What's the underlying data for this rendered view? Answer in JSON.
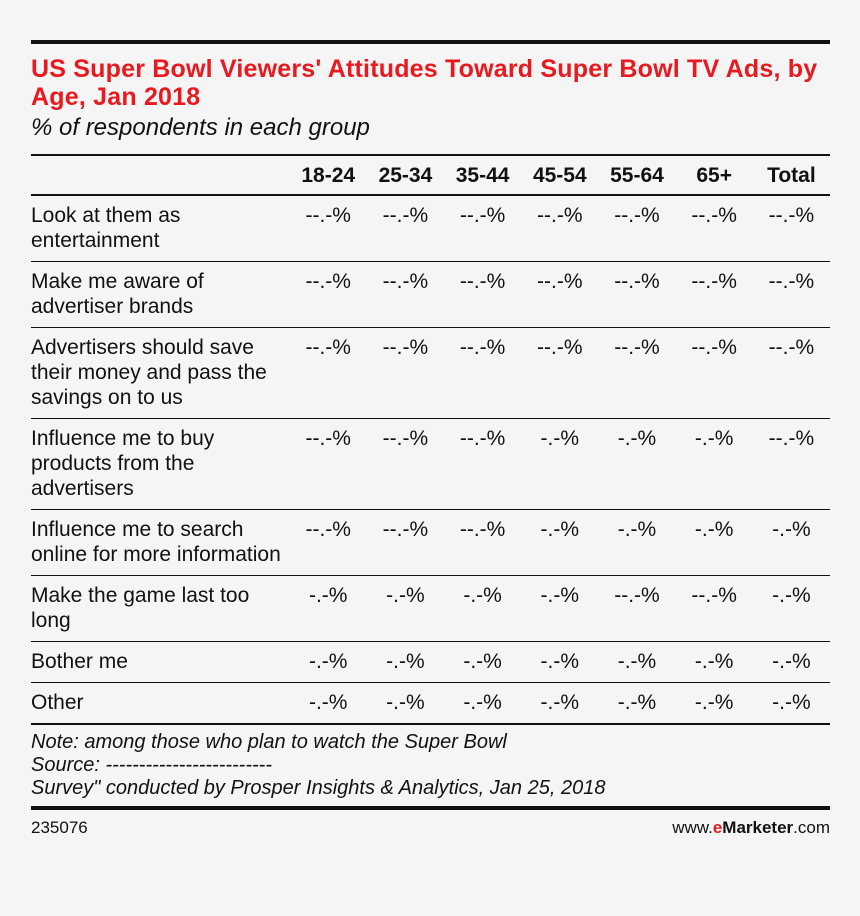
{
  "title": "US Super Bowl Viewers' Attitudes Toward Super Bowl TV Ads, by Age, Jan 2018",
  "subtitle": "% of respondents in each group",
  "chart_data": {
    "type": "table",
    "columns": [
      "18-24",
      "25-34",
      "35-44",
      "45-54",
      "55-64",
      "65+",
      "Total"
    ],
    "rows": [
      {
        "label": "Look at them as entertainment",
        "values": [
          "--.-%",
          "--.-%",
          "--.-%",
          "--.-%",
          "--.-%",
          "--.-%",
          "--.-%"
        ]
      },
      {
        "label": "Make me aware of advertiser brands",
        "values": [
          "--.-%",
          "--.-%",
          "--.-%",
          "--.-%",
          "--.-%",
          "--.-%",
          "--.-%"
        ]
      },
      {
        "label": "Advertisers should save their money and pass the savings on to us",
        "values": [
          "--.-%",
          "--.-%",
          "--.-%",
          "--.-%",
          "--.-%",
          "--.-%",
          "--.-%"
        ]
      },
      {
        "label": "Influence me to buy products from the advertisers",
        "values": [
          "--.-%",
          "--.-%",
          "--.-%",
          "-.-%",
          "-.-%",
          "-.-%",
          "--.-%"
        ]
      },
      {
        "label": "Influence me to search online for more information",
        "values": [
          "--.-%",
          "--.-%",
          "--.-%",
          "-.-%",
          "-.-%",
          "-.-%",
          "-.-%"
        ]
      },
      {
        "label": "Make the game last too long",
        "values": [
          "-.-%",
          "-.-%",
          "-.-%",
          "-.-%",
          "--.-%",
          "--.-%",
          "-.-%"
        ]
      },
      {
        "label": "Bother me",
        "values": [
          "-.-%",
          "-.-%",
          "-.-%",
          "-.-%",
          "-.-%",
          "-.-%",
          "-.-%"
        ]
      },
      {
        "label": "Other",
        "values": [
          "-.-%",
          "-.-%",
          "-.-%",
          "-.-%",
          "-.-%",
          "-.-%",
          "-.-%"
        ]
      }
    ]
  },
  "notes": {
    "note": "Note: among those who plan to watch the Super Bowl",
    "source": "Source: -------------------------",
    "survey": "Survey\" conducted by Prosper Insights & Analytics, Jan 25, 2018"
  },
  "footer": {
    "chart_id": "235076",
    "site_prefix": "www.",
    "brand_e": "e",
    "brand_rest": "Marketer",
    "site_suffix": ".com"
  },
  "colors": {
    "accent": "#e8191f",
    "text": "#111111",
    "background": "#f5f5f5"
  }
}
